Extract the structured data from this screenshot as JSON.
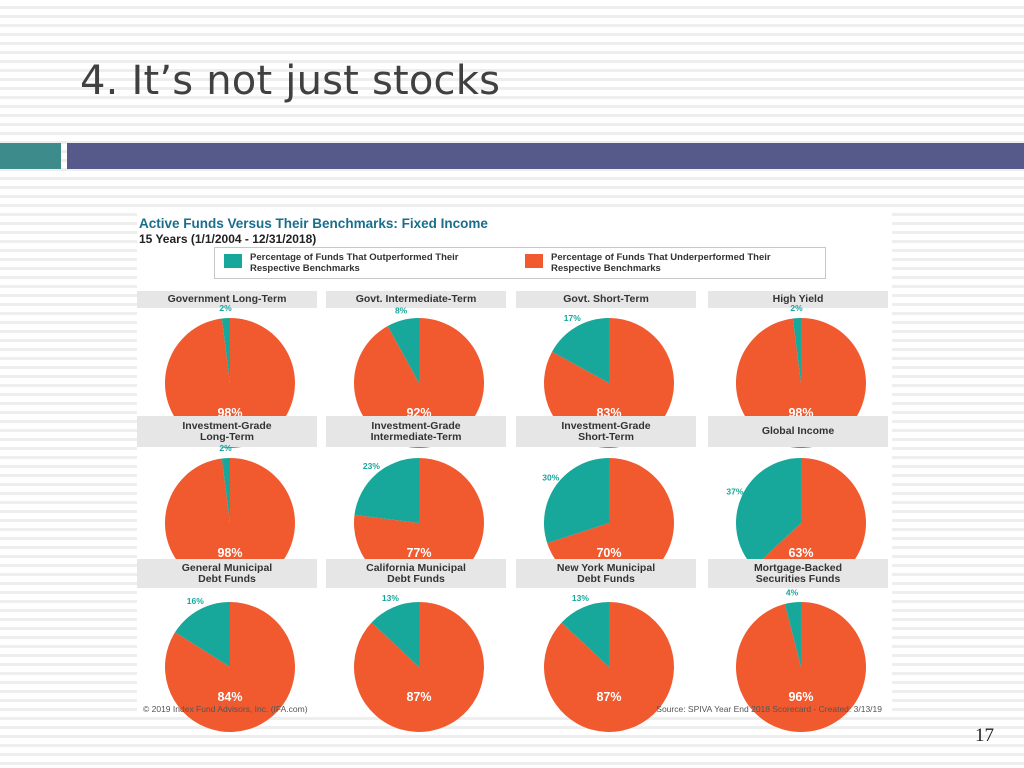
{
  "slide": {
    "title": "4. It’s not just stocks",
    "page_number": "17",
    "bar_colors": {
      "left": "#3d8b8b",
      "right": "#555a8b"
    }
  },
  "chart_data": {
    "type": "pie",
    "title": "Active Funds Versus Their Benchmarks: Fixed Income",
    "subtitle": "15 Years (1/1/2004 - 12/31/2018)",
    "legend": [
      {
        "label": "Percentage of Funds That Outperformed Their Respective Benchmarks",
        "color": "#17a79b"
      },
      {
        "label": "Percentage of Funds That Underperformed Their Respective Benchmarks",
        "color": "#f05a2e"
      }
    ],
    "panels": [
      {
        "name": "Government Long-Term",
        "outperformed": 2,
        "underperformed": 98,
        "out_label": "2%",
        "under_label": "98%"
      },
      {
        "name": "Govt. Intermediate-Term",
        "outperformed": 8,
        "underperformed": 92,
        "out_label": "8%",
        "under_label": "92%"
      },
      {
        "name": "Govt. Short-Term",
        "outperformed": 17,
        "underperformed": 83,
        "out_label": "17%",
        "under_label": "83%"
      },
      {
        "name": "High Yield",
        "outperformed": 2,
        "underperformed": 98,
        "out_label": "2%",
        "under_label": "98%"
      },
      {
        "name": "Investment-Grade\nLong-Term",
        "outperformed": 2,
        "underperformed": 98,
        "out_label": "2%",
        "under_label": "98%"
      },
      {
        "name": "Investment-Grade\nIntermediate-Term",
        "outperformed": 23,
        "underperformed": 77,
        "out_label": "23%",
        "under_label": "77%"
      },
      {
        "name": "Investment-Grade\nShort-Term",
        "outperformed": 30,
        "underperformed": 70,
        "out_label": "30%",
        "under_label": "70%"
      },
      {
        "name": "Global Income",
        "outperformed": 37,
        "underperformed": 63,
        "out_label": "37%",
        "under_label": "63%"
      },
      {
        "name": "General Municipal\nDebt Funds",
        "outperformed": 16,
        "underperformed": 84,
        "out_label": "16%",
        "under_label": "84%"
      },
      {
        "name": "California Municipal\nDebt Funds",
        "outperformed": 13,
        "underperformed": 87,
        "out_label": "13%",
        "under_label": "87%"
      },
      {
        "name": "New York Municipal\nDebt Funds",
        "outperformed": 13,
        "underperformed": 87,
        "out_label": "13%",
        "under_label": "87%"
      },
      {
        "name": "Mortgage-Backed\nSecurities Funds",
        "outperformed": 4,
        "underperformed": 96,
        "out_label": "4%",
        "under_label": "96%"
      }
    ],
    "footer_left": "© 2019 Index Fund Advisors, Inc. (IFA.com)",
    "footer_right": "Source: SPIVA Year End 2018 Scorecard - Created: 3/13/19"
  }
}
